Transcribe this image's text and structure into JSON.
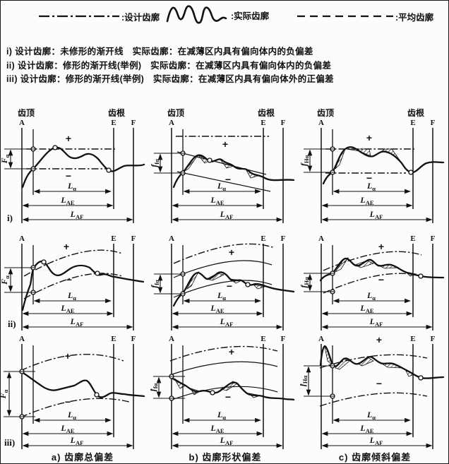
{
  "legend": {
    "items": [
      {
        "symbol": "dash-dot-line",
        "label": ":设计齿廓"
      },
      {
        "symbol": "wavy-line",
        "label": ":实际齿廓"
      },
      {
        "symbol": "dashed-line",
        "label": ":平均齿廓"
      }
    ]
  },
  "notes": [
    {
      "prefix": "i)",
      "text": "设计齿廓：未修形的渐开线　实际齿廓：在减薄区内具有偏向体内的负偏差"
    },
    {
      "prefix": "ii)",
      "text": "设计齿廓：修形的渐开线(举例)　实际齿廓：在减薄区内具有偏向体内的负偏差"
    },
    {
      "prefix": "iii)",
      "text": "设计齿廓：修形的渐开线(举例)　实际齿廓：在减薄区内具有偏向体外的正偏差"
    }
  ],
  "panel_labels": {
    "tip": "齿顶",
    "root": "齿根",
    "letters": [
      "A",
      "E",
      "F"
    ],
    "plus": "+",
    "minus": "−",
    "dims": {
      "la": {
        "main": "L",
        "sub": "α"
      },
      "lae": {
        "main": "L",
        "sub": "AE"
      },
      "laf": {
        "main": "L",
        "sub": "AF"
      }
    }
  },
  "rows": [
    {
      "label": "i)",
      "deviations": [
        {
          "main": "F",
          "sub": "α"
        },
        {
          "main": "f",
          "sub": "fα"
        },
        {
          "main": "f",
          "sub": "Hα"
        }
      ]
    },
    {
      "label": "ii)",
      "deviations": [
        {
          "main": "F",
          "sub": "α"
        },
        {
          "main": "f",
          "sub": "fα"
        },
        {
          "main": "f",
          "sub": "Hα"
        }
      ]
    },
    {
      "label": "iii)",
      "deviations": [
        {
          "main": "F",
          "sub": "α"
        },
        {
          "main": "f",
          "sub": "fα"
        },
        {
          "main": "f",
          "sub": "Hα"
        }
      ]
    }
  ],
  "captions": [
    "a) 齿廓总偏差",
    "b) 齿廓形状偏差",
    "c) 齿廓倾斜偏差"
  ]
}
